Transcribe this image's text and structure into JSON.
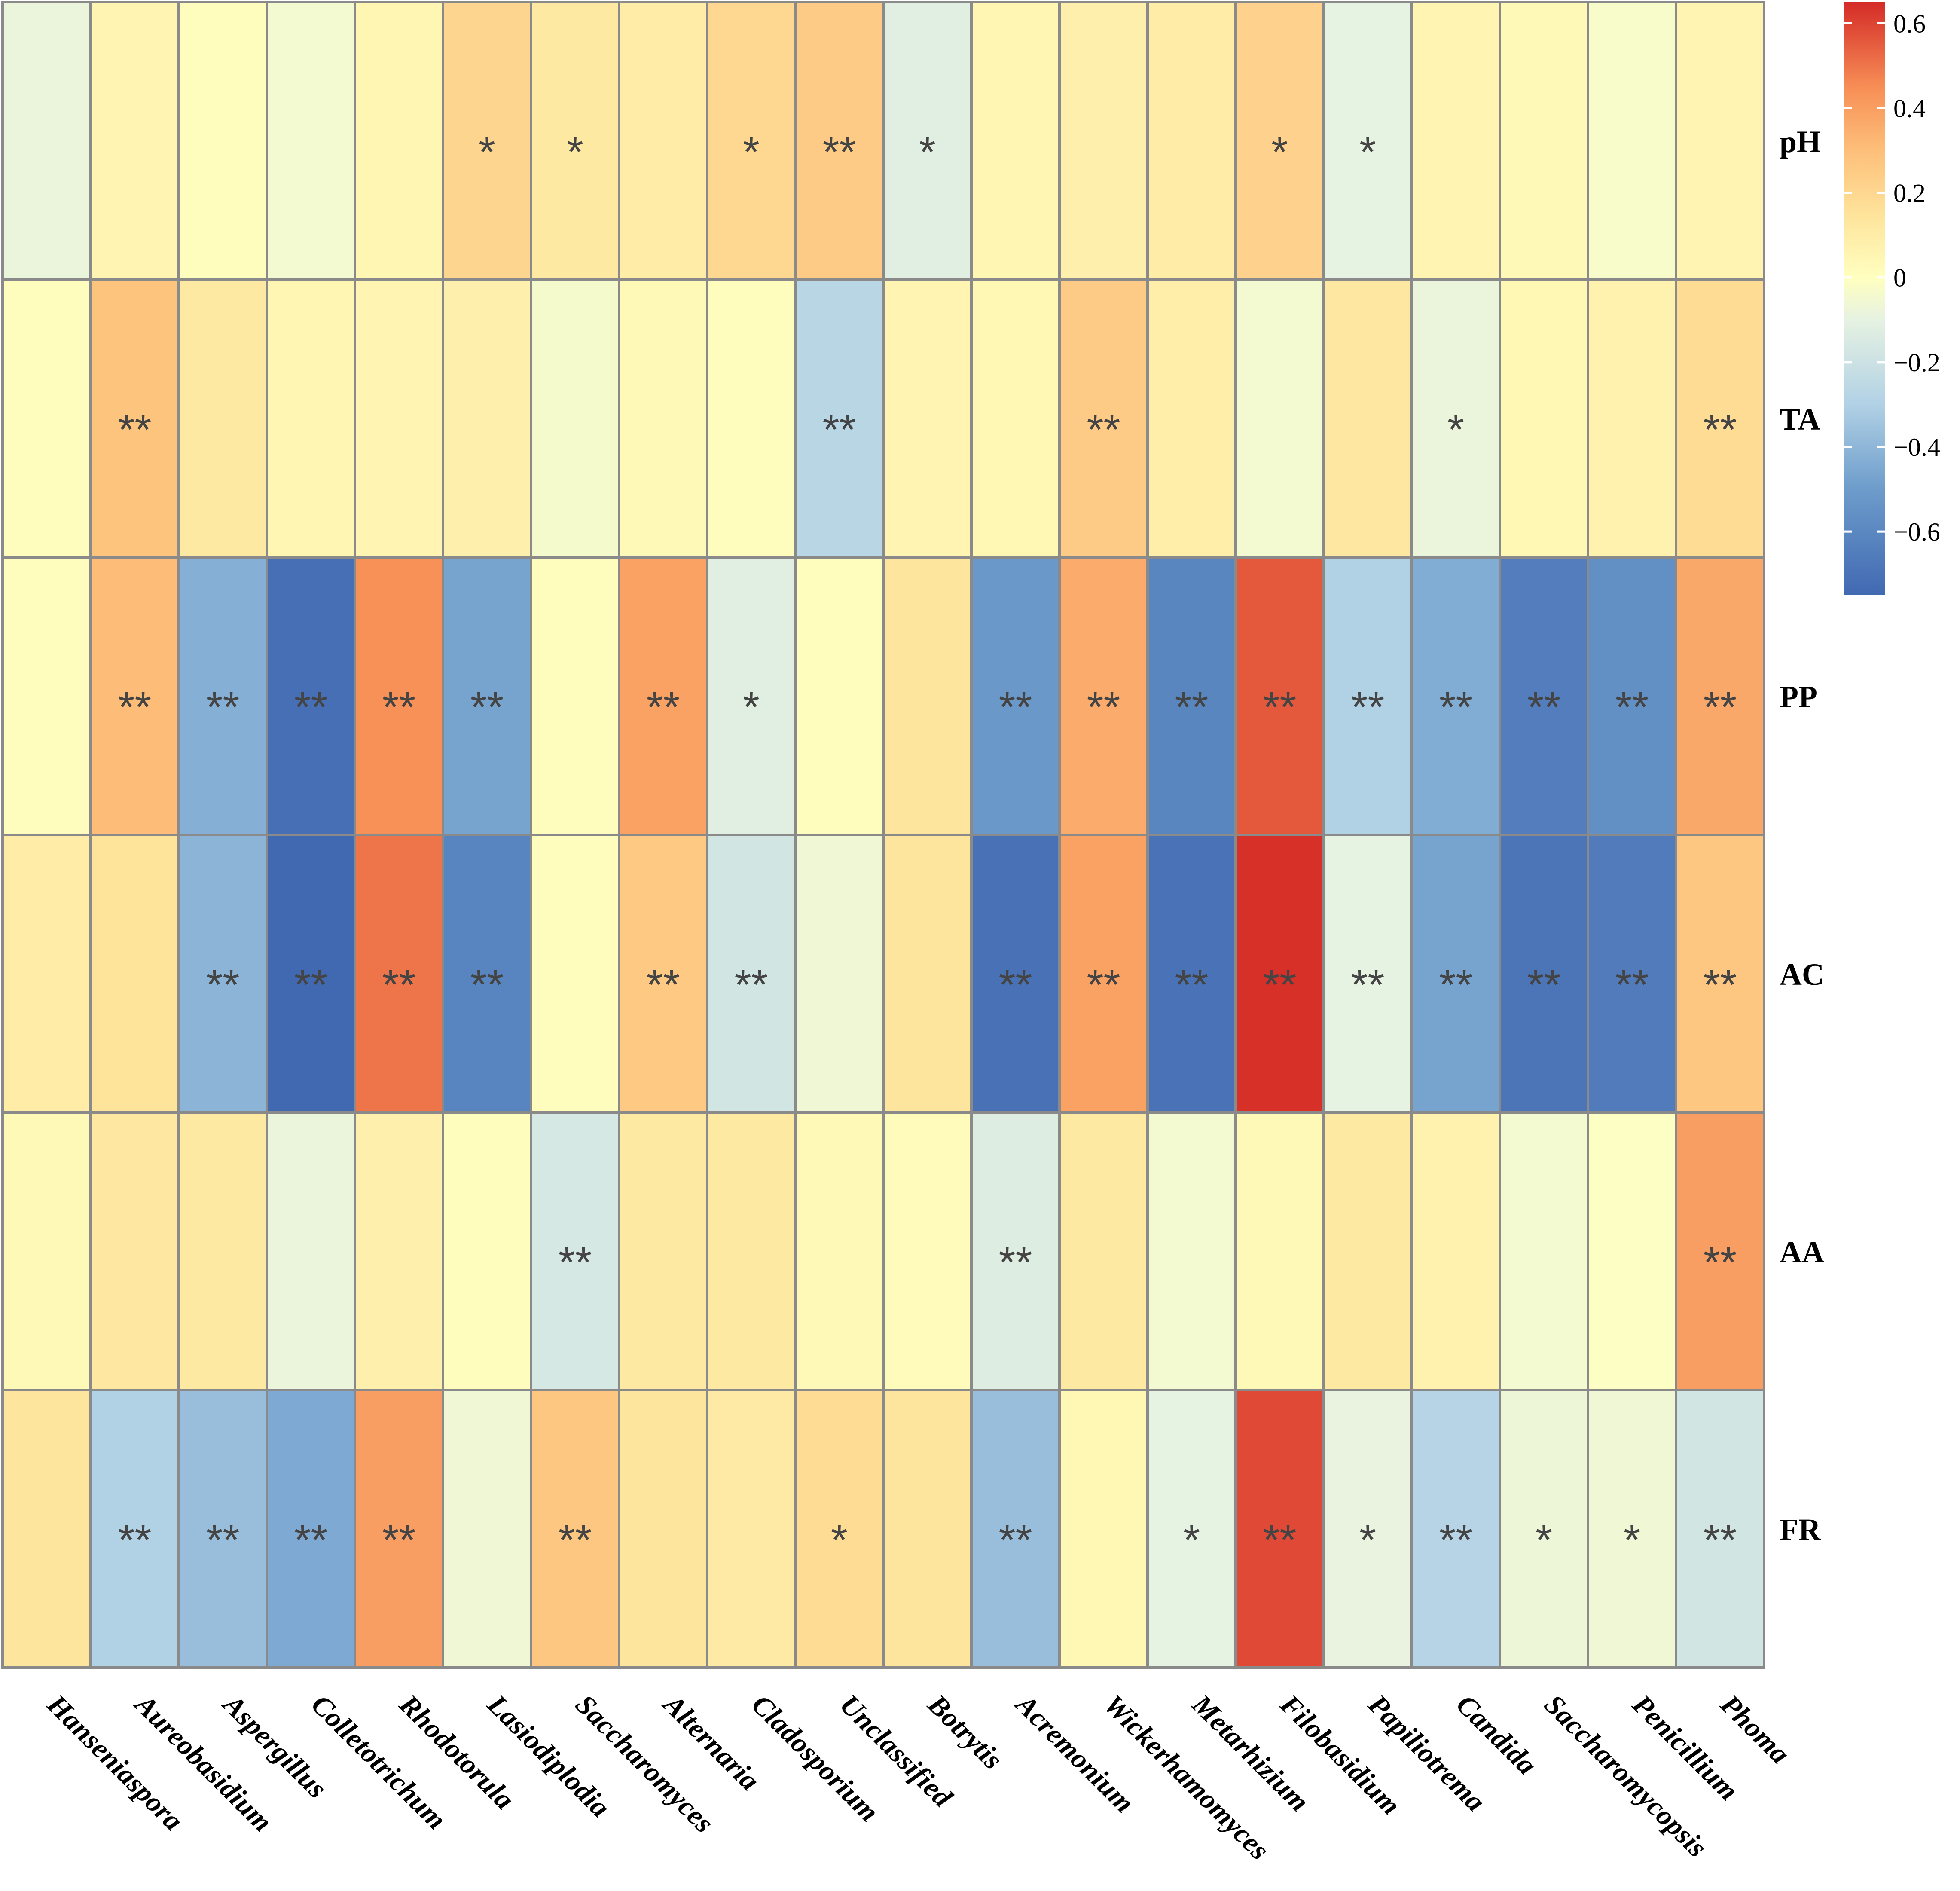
{
  "chart_data": {
    "type": "heatmap",
    "title": "",
    "rows": [
      "pH",
      "TA",
      "PP",
      "AC",
      "AA",
      "FR"
    ],
    "columns": [
      "Hanseniaspora",
      "Aureobasidium",
      "Aspergillus",
      "Colletotrichum",
      "Rhodotorula",
      "Lasiodiplodia",
      "Saccharomyces",
      "Alternaria",
      "Cladosporium",
      "Unclassified",
      "Botrytis",
      "Acremonium",
      "Wickerhamomyces",
      "Metarhizium",
      "Filobasidium",
      "Papiliotrema",
      "Candida",
      "Saccharomycopsis",
      "Penicillium",
      "Phoma"
    ],
    "values": [
      [
        -0.08,
        0.06,
        0.01,
        -0.05,
        0.05,
        0.21,
        0.12,
        0.1,
        0.2,
        0.25,
        -0.12,
        0.05,
        0.08,
        0.1,
        0.22,
        -0.1,
        0.06,
        0.03,
        -0.03,
        0.06
      ],
      [
        0.01,
        0.28,
        0.12,
        0.05,
        0.06,
        0.08,
        -0.04,
        0.03,
        0.01,
        -0.27,
        0.06,
        0.04,
        0.25,
        0.09,
        -0.05,
        0.13,
        -0.08,
        0.04,
        0.07,
        0.18
      ],
      [
        0.01,
        0.31,
        -0.43,
        -0.72,
        0.44,
        -0.47,
        0.01,
        0.39,
        -0.12,
        0.01,
        0.14,
        -0.52,
        0.36,
        -0.61,
        0.56,
        -0.3,
        -0.44,
        -0.65,
        -0.56,
        0.37
      ],
      [
        0.1,
        0.15,
        -0.41,
        -0.76,
        0.5,
        -0.62,
        0.01,
        0.26,
        -0.18,
        -0.06,
        0.14,
        -0.71,
        0.39,
        -0.7,
        0.64,
        -0.1,
        -0.47,
        -0.69,
        -0.66,
        0.27
      ],
      [
        0.03,
        0.13,
        0.12,
        -0.08,
        0.08,
        0.01,
        -0.16,
        0.12,
        0.12,
        0.03,
        0.02,
        -0.13,
        0.12,
        -0.05,
        0.03,
        0.12,
        0.07,
        -0.05,
        -0.01,
        0.4
      ],
      [
        0.14,
        -0.3,
        -0.37,
        -0.45,
        0.4,
        -0.06,
        0.27,
        0.14,
        0.11,
        0.18,
        0.14,
        -0.37,
        0.04,
        -0.1,
        0.59,
        -0.09,
        -0.28,
        -0.07,
        -0.06,
        -0.18
      ]
    ],
    "significance": [
      [
        "",
        "",
        "",
        "",
        "",
        "*",
        "*",
        "",
        "*",
        "**",
        "*",
        "",
        "",
        "",
        "*",
        "*",
        "",
        "",
        "",
        ""
      ],
      [
        "",
        "**",
        "",
        "",
        "",
        "",
        "",
        "",
        "",
        "**",
        "",
        "",
        "**",
        "",
        "",
        "",
        "*",
        "",
        "",
        "**"
      ],
      [
        "",
        "**",
        "**",
        "**",
        "**",
        "**",
        "",
        "**",
        "*",
        "",
        "",
        "**",
        "**",
        "**",
        "**",
        "**",
        "**",
        "**",
        "**",
        "**"
      ],
      [
        "",
        "",
        "**",
        "**",
        "**",
        "**",
        "",
        "**",
        "**",
        "",
        "",
        "**",
        "**",
        "**",
        "**",
        "**",
        "**",
        "**",
        "**",
        "**"
      ],
      [
        "",
        "",
        "",
        "",
        "",
        "",
        "**",
        "",
        "",
        "",
        "",
        "**",
        "",
        "",
        "",
        "",
        "",
        "",
        "",
        "**"
      ],
      [
        "",
        "**",
        "**",
        "**",
        "**",
        "",
        "**",
        "",
        "",
        "*",
        "",
        "**",
        "",
        "*",
        "**",
        "*",
        "**",
        "*",
        "*",
        "**"
      ]
    ],
    "color_scale": {
      "min": -0.75,
      "max": 0.65,
      "stops": [
        {
          "value": -0.75,
          "color": "#4169b2"
        },
        {
          "value": -0.5,
          "color": "#6d9ccb"
        },
        {
          "value": -0.3,
          "color": "#b1d1e5"
        },
        {
          "value": -0.1,
          "color": "#e6f2e2"
        },
        {
          "value": 0,
          "color": "#ffffbf"
        },
        {
          "value": 0.15,
          "color": "#fee39b"
        },
        {
          "value": 0.3,
          "color": "#fdbf7a"
        },
        {
          "value": 0.45,
          "color": "#f78e56"
        },
        {
          "value": 0.65,
          "color": "#d42b27"
        }
      ],
      "ticks": [
        0.6,
        0.4,
        0.2,
        0,
        -0.2,
        -0.4,
        -0.6
      ],
      "tick_labels": [
        "0.6",
        "0.4",
        "0.2",
        "0",
        "−0.2",
        "−0.4",
        "−0.6"
      ]
    }
  }
}
